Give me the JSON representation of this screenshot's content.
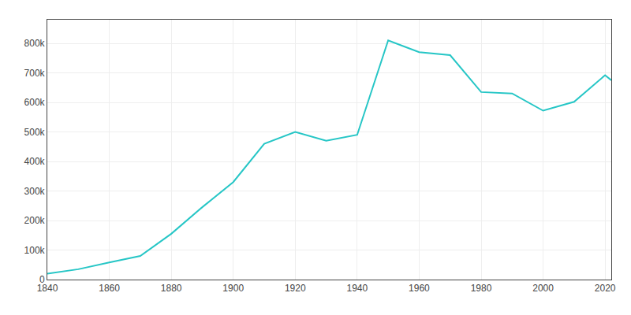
{
  "chart_data": {
    "type": "line",
    "x": [
      1840,
      1850,
      1860,
      1870,
      1880,
      1890,
      1900,
      1910,
      1920,
      1930,
      1940,
      1950,
      1960,
      1970,
      1980,
      1990,
      2000,
      2010,
      2020,
      2022
    ],
    "values": [
      20000,
      35000,
      58000,
      80000,
      155000,
      245000,
      330000,
      460000,
      500000,
      470000,
      490000,
      810000,
      770000,
      760000,
      635000,
      630000,
      572000,
      602000,
      692000,
      675000
    ],
    "color": "#26c6c6",
    "xlim": [
      1840,
      2022
    ],
    "ylim": [
      0,
      880000
    ],
    "xticks": [
      1840,
      1860,
      1880,
      1900,
      1920,
      1940,
      1960,
      1980,
      2000,
      2020
    ],
    "yticks": [
      0,
      {
        "value": 100000,
        "label": "100k"
      },
      {
        "value": 200000,
        "label": "200k"
      },
      {
        "value": 300000,
        "label": "300k"
      },
      {
        "value": 400000,
        "label": "400k"
      },
      {
        "value": 500000,
        "label": "500k"
      },
      {
        "value": 600000,
        "label": "600k"
      },
      {
        "value": 700000,
        "label": "700k"
      },
      {
        "value": 800000,
        "label": "800k"
      }
    ],
    "grid": true
  }
}
